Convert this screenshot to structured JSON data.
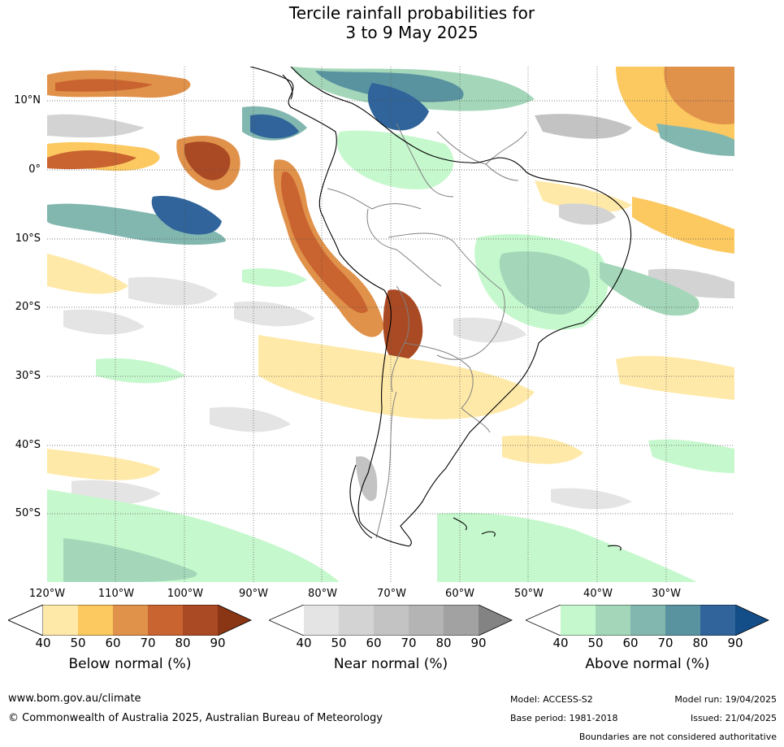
{
  "title": {
    "line1": "Tercile rainfall probabilities for",
    "line2": "3 to 9 May 2025"
  },
  "map": {
    "lat_labels": [
      "10°N",
      "0°",
      "10°S",
      "20°S",
      "30°S",
      "40°S",
      "50°S"
    ],
    "lon_labels": [
      "120°W",
      "110°W",
      "100°W",
      "90°W",
      "80°W",
      "70°W",
      "60°W",
      "50°W",
      "40°W",
      "30°W"
    ],
    "colors": {
      "coast": "#000000",
      "borders": "#808080",
      "grid": "#555555"
    }
  },
  "legend": {
    "below": {
      "title": "Below normal (%)",
      "ticks": [
        "40",
        "50",
        "60",
        "70",
        "80",
        "90"
      ],
      "colors": [
        "#ffe9a8",
        "#fcc860",
        "#e0914a",
        "#c9632f",
        "#aa4a24",
        "#8a3514"
      ]
    },
    "near": {
      "title": "Near normal (%)",
      "ticks": [
        "40",
        "50",
        "60",
        "70",
        "80",
        "90"
      ],
      "colors": [
        "#e4e4e4",
        "#d3d3d3",
        "#c3c3c3",
        "#b4b4b4",
        "#a2a2a2",
        "#838383"
      ]
    },
    "above": {
      "title": "Above normal (%)",
      "ticks": [
        "40",
        "50",
        "60",
        "70",
        "80",
        "90"
      ],
      "colors": [
        "#c6f8cd",
        "#a4d7b9",
        "#82b7b0",
        "#5a93a0",
        "#30649a",
        "#144e88"
      ]
    }
  },
  "footer": {
    "website": "www.bom.gov.au/climate",
    "copyright": "© Commonwealth of Australia 2025, Australian Bureau of Meteorology",
    "model": "Model: ACCESS-S2",
    "base_period": "Base period: 1981-2018",
    "model_run": "Model run: 19/04/2025",
    "issued": "Issued: 21/04/2025",
    "disclaimer": "Boundaries are not considered authoritative"
  }
}
